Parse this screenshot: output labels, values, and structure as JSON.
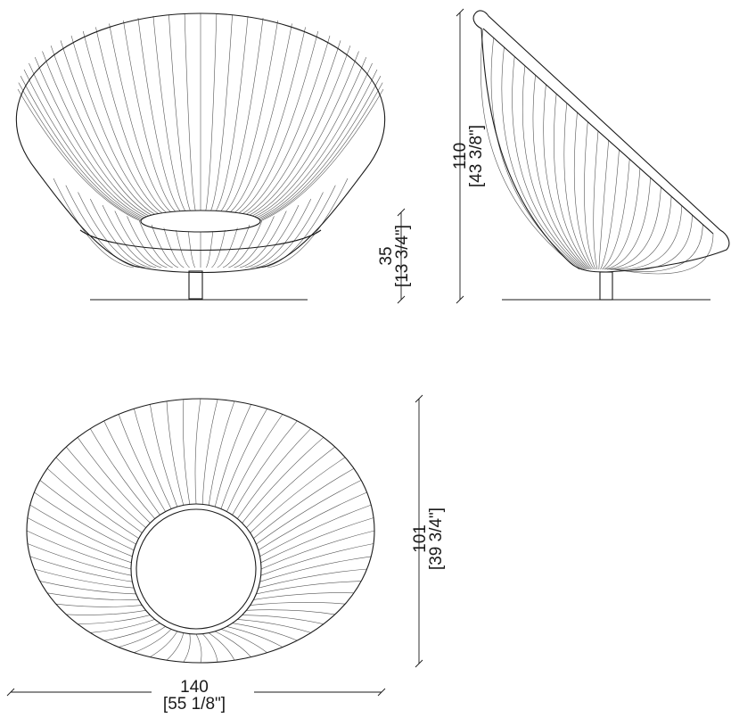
{
  "dimensions": {
    "seat_height": {
      "metric": "35",
      "imperial": "[13 3/4\"]"
    },
    "overall_height": {
      "metric": "110",
      "imperial": "[43 3/8\"]"
    },
    "depth": {
      "metric": "101",
      "imperial": "[39 3/4\"]"
    },
    "width": {
      "metric": "140",
      "imperial": "[55 1/8\"]"
    }
  }
}
